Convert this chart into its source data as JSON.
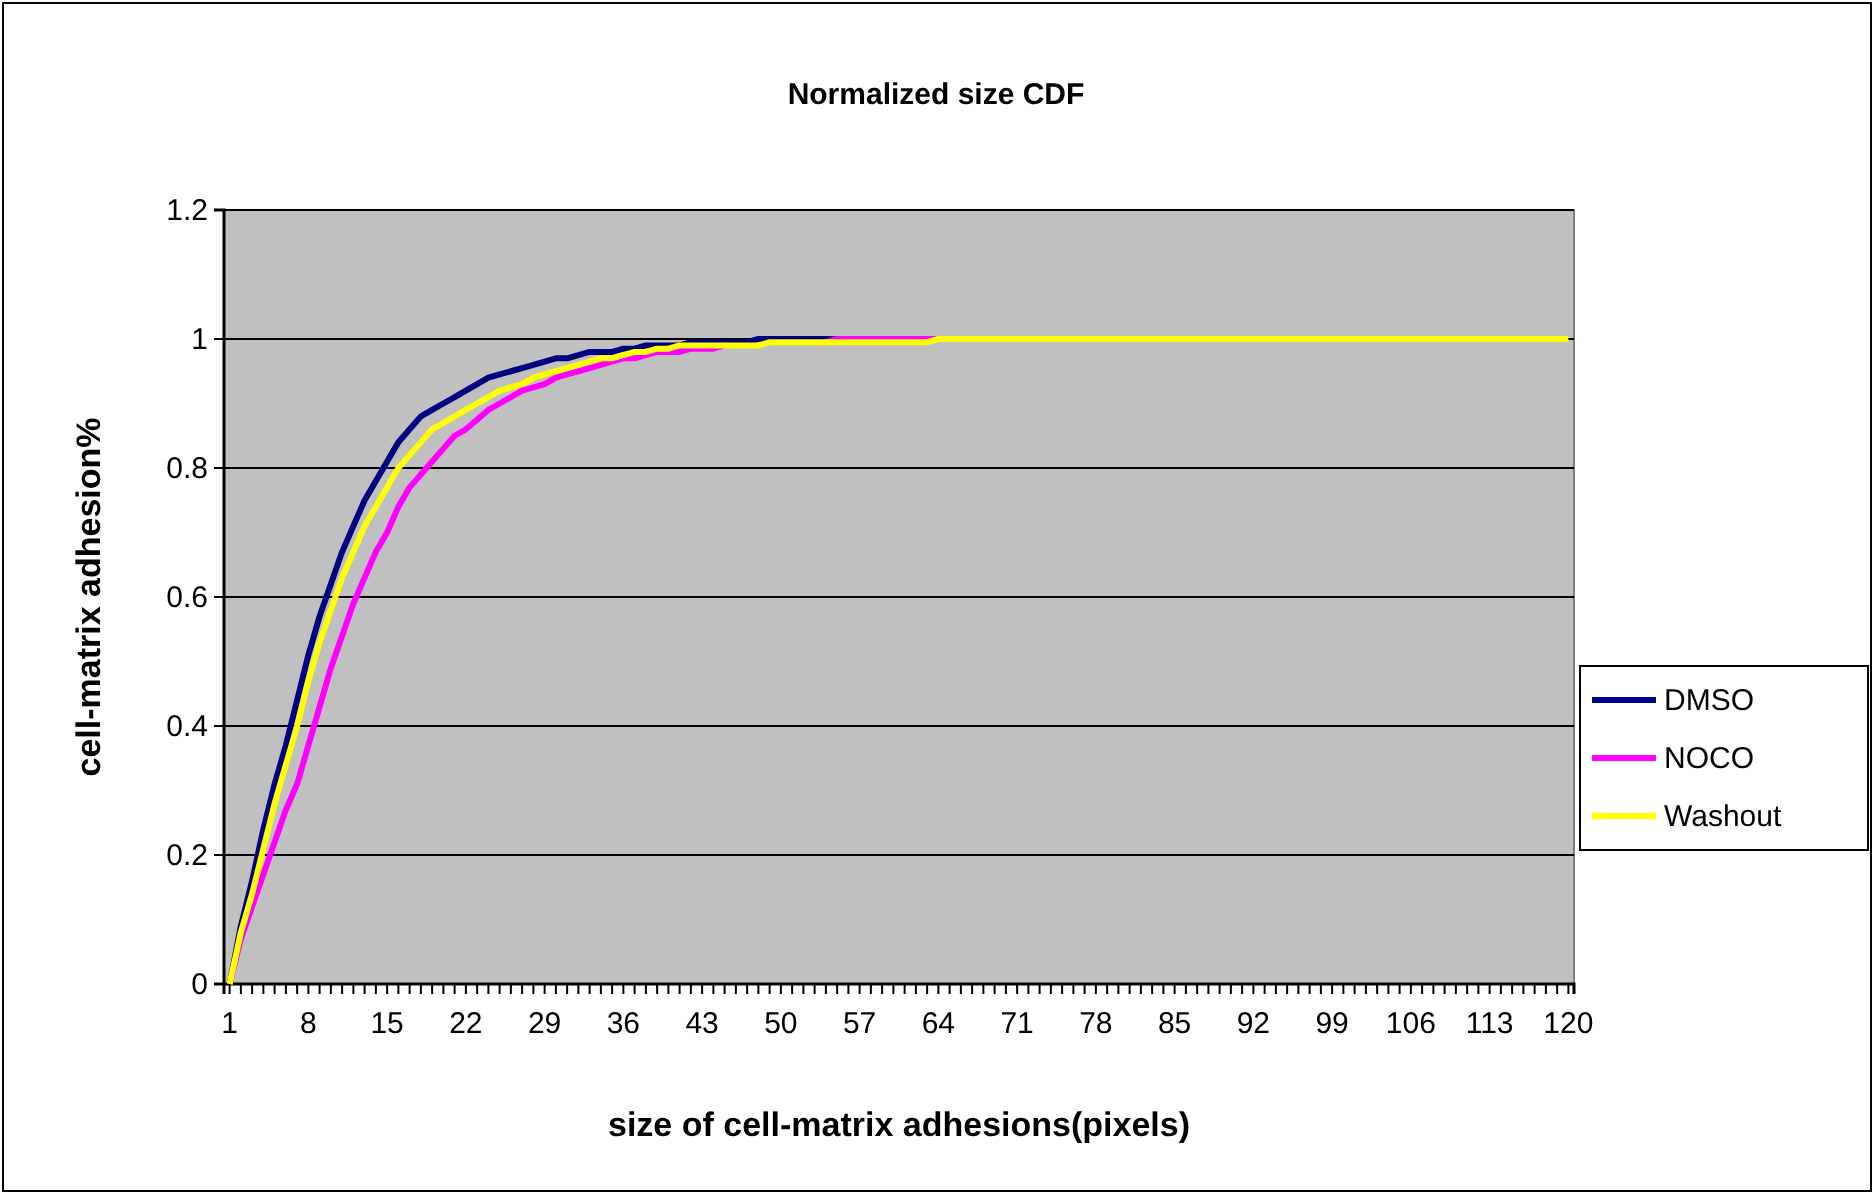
{
  "chart_data": {
    "type": "line",
    "title": "Normalized size CDF",
    "xlabel": "size of cell-matrix adhesions(pixels)",
    "ylabel": "cell-matrix adhesion%",
    "categories": [
      "1",
      null,
      null,
      null,
      null,
      null,
      null,
      "8",
      null,
      null,
      null,
      null,
      null,
      null,
      "15",
      null,
      null,
      null,
      null,
      null,
      null,
      "22",
      null,
      null,
      null,
      null,
      null,
      null,
      "29",
      null,
      null,
      null,
      null,
      null,
      null,
      "36",
      null,
      null,
      null,
      null,
      null,
      null,
      "43",
      null,
      null,
      null,
      null,
      null,
      null,
      "50",
      null,
      null,
      null,
      null,
      null,
      null,
      "57",
      null,
      null,
      null,
      null,
      null,
      null,
      "64",
      null,
      null,
      null,
      null,
      null,
      null,
      "71",
      null,
      null,
      null,
      null,
      null,
      null,
      "78",
      null,
      null,
      null,
      null,
      null,
      null,
      "85",
      null,
      null,
      null,
      null,
      null,
      null,
      "92",
      null,
      null,
      null,
      null,
      null,
      null,
      "99",
      null,
      null,
      null,
      null,
      null,
      null,
      "106",
      null,
      null,
      null,
      null,
      null,
      null,
      "113",
      null,
      null,
      null,
      null,
      null,
      null,
      "120"
    ],
    "series": [
      {
        "name": "DMSO",
        "color": "#000080",
        "values": [
          0,
          0.09,
          0.16,
          0.24,
          0.31,
          0.37,
          0.44,
          0.51,
          0.57,
          0.62,
          0.67,
          0.71,
          0.75,
          0.78,
          0.81,
          0.84,
          0.86,
          0.88,
          0.89,
          0.9,
          0.91,
          0.92,
          0.93,
          0.94,
          0.945,
          0.95,
          0.955,
          0.96,
          0.965,
          0.97,
          0.97,
          0.975,
          0.98,
          0.98,
          0.98,
          0.985,
          0.985,
          0.99,
          0.99,
          0.99,
          0.99,
          0.995,
          0.995,
          0.995,
          0.995,
          0.995,
          0.995,
          1,
          1,
          1,
          1,
          1,
          1,
          1,
          1,
          null,
          null,
          null,
          null,
          null,
          null,
          null,
          null,
          null,
          null,
          null,
          null,
          null,
          null,
          null,
          null,
          null,
          null,
          null,
          null,
          null,
          null,
          null,
          null,
          null,
          null,
          null,
          null,
          null,
          null,
          null,
          null,
          null,
          null,
          null,
          null,
          null,
          null,
          null,
          null,
          null,
          null,
          null,
          null,
          null,
          null,
          null,
          null,
          null,
          null,
          null,
          null,
          null,
          null,
          null,
          null,
          null,
          null,
          null,
          null,
          null,
          null,
          null,
          null,
          null
        ]
      },
      {
        "name": "NOCO",
        "color": "#ff00ff",
        "values": [
          0,
          0.07,
          0.12,
          0.17,
          0.22,
          0.27,
          0.31,
          0.37,
          0.43,
          0.49,
          0.54,
          0.59,
          0.63,
          0.67,
          0.7,
          0.74,
          0.77,
          0.79,
          0.81,
          0.83,
          0.85,
          0.86,
          0.875,
          0.89,
          0.9,
          0.91,
          0.92,
          0.925,
          0.93,
          0.94,
          0.945,
          0.95,
          0.955,
          0.96,
          0.965,
          0.97,
          0.97,
          0.975,
          0.98,
          0.98,
          0.98,
          0.985,
          0.985,
          0.985,
          0.99,
          null,
          null,
          null,
          null,
          null,
          null,
          null,
          null,
          0.995,
          1,
          1,
          1,
          1,
          1,
          1,
          1,
          1,
          1,
          1,
          null,
          null,
          null,
          null,
          null,
          null,
          null,
          null,
          null,
          null,
          null,
          null,
          null,
          null,
          null,
          null,
          null,
          null,
          null,
          null,
          null,
          null,
          null,
          null,
          null,
          null,
          null,
          null,
          null,
          null,
          null,
          null,
          null,
          null,
          null,
          null,
          null,
          null,
          null,
          null,
          null,
          null,
          null,
          null,
          null,
          null,
          null,
          null,
          null,
          null,
          null,
          null,
          null,
          null,
          null,
          null
        ]
      },
      {
        "name": "Washout",
        "color": "#ffff00",
        "values": [
          0,
          0.08,
          0.14,
          0.21,
          0.28,
          0.34,
          0.4,
          0.47,
          0.53,
          0.58,
          0.63,
          0.67,
          0.71,
          0.74,
          0.77,
          0.8,
          0.82,
          0.84,
          0.86,
          0.87,
          0.88,
          0.89,
          0.9,
          0.91,
          0.92,
          0.925,
          0.93,
          0.94,
          0.945,
          0.95,
          0.955,
          0.96,
          0.965,
          0.97,
          0.97,
          0.975,
          0.98,
          0.98,
          0.985,
          0.985,
          0.99,
          0.99,
          0.99,
          0.99,
          0.99,
          0.99,
          0.99,
          0.99,
          0.995,
          0.995,
          0.995,
          0.995,
          0.995,
          0.995,
          0.995,
          0.995,
          0.995,
          0.995,
          0.995,
          0.995,
          0.995,
          0.995,
          0.995,
          1,
          1,
          1,
          1,
          1,
          1,
          1,
          1,
          1,
          1,
          1,
          1,
          1,
          1,
          1,
          1,
          1,
          1,
          1,
          1,
          1,
          1,
          1,
          1,
          1,
          1,
          1,
          1,
          1,
          1,
          1,
          1,
          1,
          1,
          1,
          1,
          1,
          1,
          1,
          1,
          1,
          1,
          1,
          1,
          1,
          1,
          1,
          1,
          1,
          1,
          1,
          1,
          1,
          1,
          1,
          1,
          1
        ]
      }
    ],
    "ylim": [
      0,
      1.2
    ],
    "yticks": [
      0,
      0.2,
      0.4,
      0.6,
      0.8,
      1,
      1.2
    ],
    "grid": "y",
    "legend": "right",
    "marker": "none",
    "line_style": "solid"
  }
}
